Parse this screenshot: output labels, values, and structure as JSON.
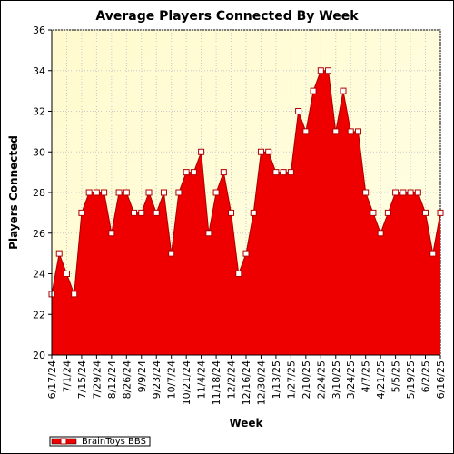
{
  "chart_data": {
    "type": "area",
    "title": "Average Players Connected By Week",
    "xlabel": "Week",
    "ylabel": "Players Connected",
    "ylim": [
      20,
      36
    ],
    "yticks": [
      20,
      22,
      24,
      26,
      28,
      30,
      32,
      34,
      36
    ],
    "grid": true,
    "legend_position": "bottom-left",
    "x_tick_labels": [
      "6/17/24",
      "7/1/24",
      "7/15/24",
      "7/29/24",
      "8/12/24",
      "8/26/24",
      "9/9/24",
      "9/23/24",
      "10/7/24",
      "10/21/24",
      "11/4/24",
      "11/18/24",
      "12/2/24",
      "12/16/24",
      "12/30/24",
      "1/13/25",
      "1/27/25",
      "2/10/25",
      "2/24/25",
      "3/10/25",
      "3/24/25",
      "4/7/25",
      "4/21/25",
      "5/5/25",
      "5/19/25",
      "6/2/25",
      "6/16/25"
    ],
    "series": [
      {
        "name": "BrainToys BBS",
        "color": "#ee0000",
        "x": [
          "6/17/24",
          "6/24/24",
          "7/1/24",
          "7/8/24",
          "7/15/24",
          "7/22/24",
          "7/29/24",
          "8/5/24",
          "8/12/24",
          "8/19/24",
          "8/26/24",
          "9/2/24",
          "9/9/24",
          "9/16/24",
          "9/23/24",
          "9/30/24",
          "10/7/24",
          "10/14/24",
          "10/21/24",
          "10/28/24",
          "11/4/24",
          "11/11/24",
          "11/18/24",
          "11/25/24",
          "12/2/24",
          "12/9/24",
          "12/16/24",
          "12/23/24",
          "12/30/24",
          "1/6/25",
          "1/13/25",
          "1/20/25",
          "1/27/25",
          "2/3/25",
          "2/10/25",
          "2/17/25",
          "2/24/25",
          "3/3/25",
          "3/10/25",
          "3/17/25",
          "3/24/25",
          "3/31/25",
          "4/7/25",
          "4/14/25",
          "4/21/25",
          "4/28/25",
          "5/5/25",
          "5/12/25",
          "5/19/25",
          "5/26/25",
          "6/2/25",
          "6/9/25",
          "6/16/25"
        ],
        "values": [
          23,
          25,
          24,
          23,
          27,
          28,
          28,
          28,
          26,
          28,
          28,
          27,
          27,
          28,
          27,
          28,
          25,
          28,
          29,
          29,
          30,
          26,
          28,
          29,
          27,
          24,
          25,
          27,
          30,
          30,
          29,
          29,
          29,
          32,
          31,
          33,
          34,
          34,
          31,
          33,
          31,
          31,
          28,
          27,
          26,
          27,
          28,
          28,
          28,
          28,
          27,
          25,
          27
        ]
      }
    ]
  }
}
